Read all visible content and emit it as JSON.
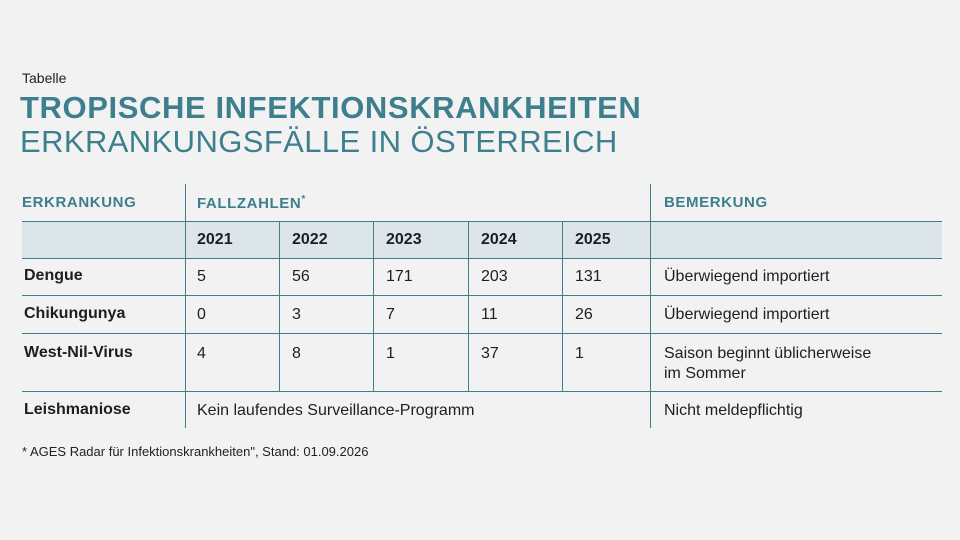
{
  "header": {
    "kicker": "Tabelle",
    "title": "TROPISCHE INFEKTIONSKRANKHEITEN",
    "subtitle": "ERKRANKUNGSFÄLLE IN ÖSTERREICH"
  },
  "table": {
    "col_disease": "ERKRANKUNG",
    "col_cases": "FALLZAHLEN",
    "col_cases_mark": "*",
    "col_remark": "BEMERKUNG",
    "years": [
      "2021",
      "2022",
      "2023",
      "2024",
      "2025"
    ],
    "rows": [
      {
        "name": "Dengue",
        "values": [
          "5",
          "56",
          "171",
          "203",
          "131"
        ],
        "remark": "Überwiegend importiert"
      },
      {
        "name": "Chikungunya",
        "values": [
          "0",
          "3",
          "7",
          "11",
          "26"
        ],
        "remark": "Überwiegend importiert"
      },
      {
        "name": "West-Nil-Virus",
        "values": [
          "4",
          "8",
          "1",
          "37",
          "1"
        ],
        "remark_line1": "Saison beginnt üblicherweise",
        "remark_line2": "im Sommer"
      },
      {
        "name": "Leishmaniose",
        "merged": "Kein laufendes Surveillance-Programm",
        "remark": "Nicht meldepflichtig"
      }
    ]
  },
  "footnote": "* AGES Radar für Infektionskrankheiten\", Stand: 01.09.2026",
  "colors": {
    "accent": "#3d7f8d",
    "band": "#dce6ea",
    "background": "#f2f2f2"
  }
}
